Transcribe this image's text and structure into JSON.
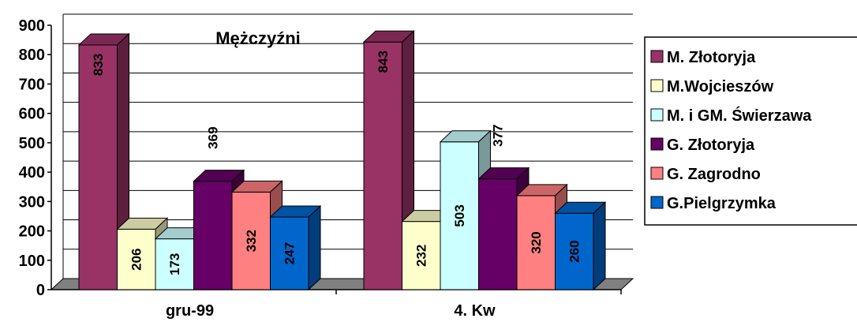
{
  "chart_data": {
    "type": "bar",
    "title": "Mężczyźni",
    "categories": [
      "gru-99",
      "4. Kw"
    ],
    "series": [
      {
        "name": "M. Złotoryja",
        "values": [
          833,
          843
        ],
        "color": "#993366"
      },
      {
        "name": "M.Wojcieszów",
        "values": [
          206,
          232
        ],
        "color": "#FFFFCC"
      },
      {
        "name": "M. i GM. Świerzawa",
        "values": [
          173,
          503
        ],
        "color": "#CCFFFF"
      },
      {
        "name": "G. Złotoryja",
        "values": [
          369,
          377
        ],
        "color": "#660066"
      },
      {
        "name": "G. Zagrodno",
        "values": [
          332,
          320
        ],
        "color": "#FF8080"
      },
      {
        "name": "G.Pielgrzymka",
        "values": [
          247,
          260
        ],
        "color": "#0066CC"
      }
    ],
    "ylim": [
      0,
      900
    ],
    "yticks": [
      "0",
      "100",
      "200",
      "300",
      "400",
      "500",
      "600",
      "700",
      "800",
      "900"
    ],
    "grid": true,
    "legend_position": "right",
    "three_d": true
  }
}
